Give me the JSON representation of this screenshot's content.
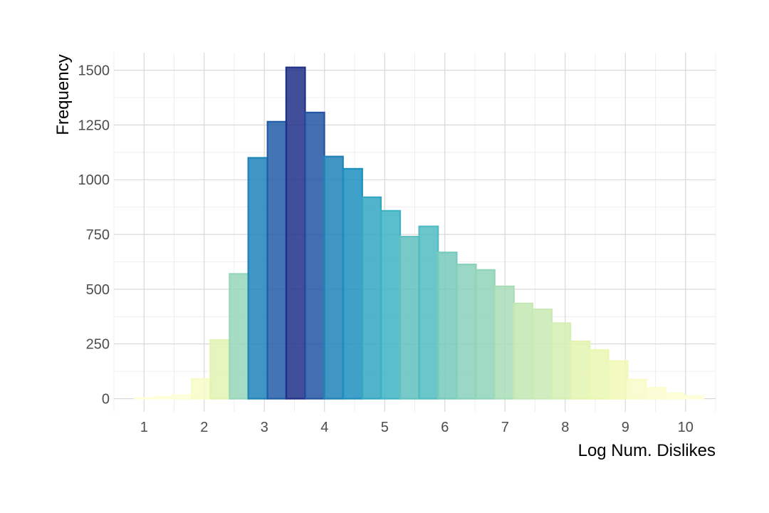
{
  "chart_data": {
    "type": "bar",
    "subtype": "histogram",
    "title": "",
    "xlabel": "Log Num. Dislikes",
    "ylabel": "Frequency",
    "xlim": [
      0.5,
      10.5
    ],
    "ylim": [
      -60,
      1580
    ],
    "x_ticks": [
      "1",
      "2",
      "3",
      "4",
      "5",
      "6",
      "7",
      "8",
      "9",
      "10"
    ],
    "y_ticks": [
      "0",
      "250",
      "500",
      "750",
      "1000",
      "1250",
      "1500"
    ],
    "grid": true,
    "legend": "none",
    "color_scale": "YlGnBu, mapped to frequency",
    "bin_width": 0.315,
    "bins": [
      {
        "x": 1.0,
        "count": 3
      },
      {
        "x": 1.32,
        "count": 8
      },
      {
        "x": 1.63,
        "count": 17
      },
      {
        "x": 1.95,
        "count": 90
      },
      {
        "x": 2.26,
        "count": 268
      },
      {
        "x": 2.58,
        "count": 570
      },
      {
        "x": 2.89,
        "count": 1100
      },
      {
        "x": 3.21,
        "count": 1265
      },
      {
        "x": 3.52,
        "count": 1513
      },
      {
        "x": 3.84,
        "count": 1307
      },
      {
        "x": 4.15,
        "count": 1106
      },
      {
        "x": 4.47,
        "count": 1050
      },
      {
        "x": 4.78,
        "count": 920
      },
      {
        "x": 5.1,
        "count": 858
      },
      {
        "x": 5.41,
        "count": 740
      },
      {
        "x": 5.73,
        "count": 787
      },
      {
        "x": 6.04,
        "count": 668
      },
      {
        "x": 6.36,
        "count": 613
      },
      {
        "x": 6.67,
        "count": 588
      },
      {
        "x": 6.99,
        "count": 513
      },
      {
        "x": 7.3,
        "count": 435
      },
      {
        "x": 7.62,
        "count": 408
      },
      {
        "x": 7.93,
        "count": 345
      },
      {
        "x": 8.25,
        "count": 262
      },
      {
        "x": 8.56,
        "count": 222
      },
      {
        "x": 8.88,
        "count": 172
      },
      {
        "x": 9.19,
        "count": 88
      },
      {
        "x": 9.51,
        "count": 50
      },
      {
        "x": 9.82,
        "count": 25
      },
      {
        "x": 10.14,
        "count": 13
      }
    ]
  }
}
